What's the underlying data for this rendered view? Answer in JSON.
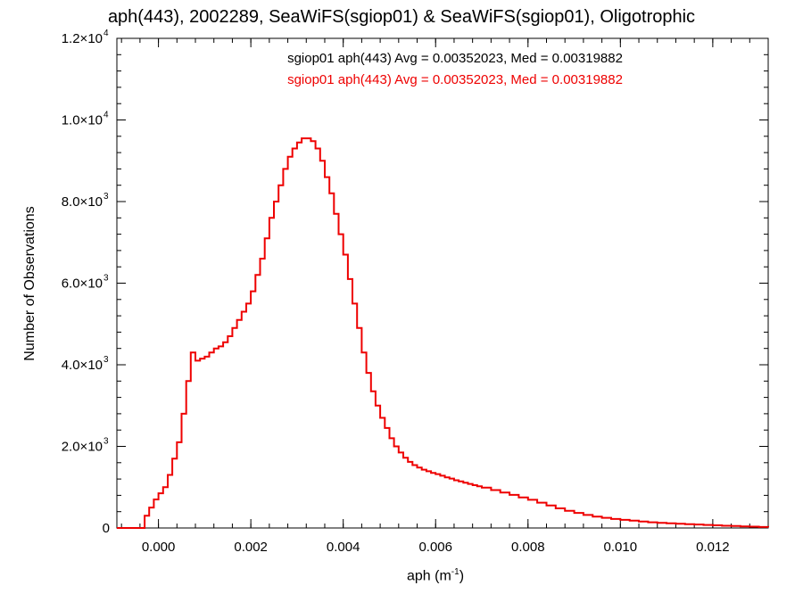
{
  "chart_data": {
    "type": "histogram",
    "title": "aph(443), 2002289, SeaWiFS(sgiop01) & SeaWiFS(sgiop01), Oligotrophic",
    "xlabel": "aph (m",
    "xlabel_sup": "-1",
    "xlabel_close": ")",
    "ylabel": "Number of Observations",
    "xlim": [
      -0.0009,
      0.0132
    ],
    "ylim": [
      0,
      12000
    ],
    "x_ticks": [
      0.0,
      0.002,
      0.004,
      0.006,
      0.008,
      0.01,
      0.012
    ],
    "x_tick_labels": [
      "0.000",
      "0.002",
      "0.004",
      "0.006",
      "0.008",
      "0.010",
      "0.012"
    ],
    "y_ticks": [
      0,
      2000,
      4000,
      6000,
      8000,
      10000,
      12000
    ],
    "y_tick_labels": [
      {
        "mant": "0",
        "exp": ""
      },
      {
        "mant": "2.0×10",
        "exp": "3"
      },
      {
        "mant": "4.0×10",
        "exp": "3"
      },
      {
        "mant": "6.0×10",
        "exp": "3"
      },
      {
        "mant": "8.0×10",
        "exp": "3"
      },
      {
        "mant": "1.0×10",
        "exp": "4"
      },
      {
        "mant": "1.2×10",
        "exp": "4"
      }
    ],
    "annotations": [
      {
        "text": "sgiop01 aph(443) Avg = 0.00352023, Med = 0.00319882",
        "color": "#000000"
      },
      {
        "text": "sgiop01 aph(443) Avg = 0.00352023, Med = 0.00319882",
        "color": "#ee0000"
      }
    ],
    "series": [
      {
        "color": "#ee0000",
        "points": [
          [
            -0.0009,
            0
          ],
          [
            -0.0004,
            0
          ],
          [
            -0.0003,
            300
          ],
          [
            -0.0002,
            500
          ],
          [
            -0.0001,
            700
          ],
          [
            0.0,
            850
          ],
          [
            0.0001,
            1000
          ],
          [
            0.0002,
            1300
          ],
          [
            0.0003,
            1700
          ],
          [
            0.0004,
            2100
          ],
          [
            0.0005,
            2800
          ],
          [
            0.0006,
            3600
          ],
          [
            0.0007,
            4300
          ],
          [
            0.0008,
            4100
          ],
          [
            0.0009,
            4150
          ],
          [
            0.001,
            4200
          ],
          [
            0.0011,
            4300
          ],
          [
            0.0012,
            4400
          ],
          [
            0.0013,
            4450
          ],
          [
            0.0014,
            4550
          ],
          [
            0.0015,
            4700
          ],
          [
            0.0016,
            4900
          ],
          [
            0.0017,
            5100
          ],
          [
            0.0018,
            5300
          ],
          [
            0.0019,
            5500
          ],
          [
            0.002,
            5800
          ],
          [
            0.0021,
            6200
          ],
          [
            0.0022,
            6600
          ],
          [
            0.0023,
            7100
          ],
          [
            0.0024,
            7600
          ],
          [
            0.0025,
            8000
          ],
          [
            0.0026,
            8400
          ],
          [
            0.0027,
            8800
          ],
          [
            0.0028,
            9100
          ],
          [
            0.0029,
            9300
          ],
          [
            0.003,
            9450
          ],
          [
            0.0031,
            9550
          ],
          [
            0.0032,
            9550
          ],
          [
            0.0033,
            9480
          ],
          [
            0.0034,
            9300
          ],
          [
            0.0035,
            9000
          ],
          [
            0.0036,
            8600
          ],
          [
            0.0037,
            8200
          ],
          [
            0.0038,
            7700
          ],
          [
            0.0039,
            7200
          ],
          [
            0.004,
            6700
          ],
          [
            0.0041,
            6100
          ],
          [
            0.0042,
            5500
          ],
          [
            0.0043,
            4900
          ],
          [
            0.0044,
            4300
          ],
          [
            0.0045,
            3800
          ],
          [
            0.0046,
            3350
          ],
          [
            0.0047,
            3000
          ],
          [
            0.0048,
            2700
          ],
          [
            0.0049,
            2450
          ],
          [
            0.005,
            2200
          ],
          [
            0.0051,
            2000
          ],
          [
            0.0052,
            1850
          ],
          [
            0.0053,
            1720
          ],
          [
            0.0054,
            1620
          ],
          [
            0.0055,
            1540
          ],
          [
            0.0056,
            1480
          ],
          [
            0.0057,
            1430
          ],
          [
            0.0058,
            1390
          ],
          [
            0.0059,
            1350
          ],
          [
            0.006,
            1320
          ],
          [
            0.0061,
            1280
          ],
          [
            0.0062,
            1240
          ],
          [
            0.0063,
            1210
          ],
          [
            0.0064,
            1170
          ],
          [
            0.0065,
            1140
          ],
          [
            0.0066,
            1110
          ],
          [
            0.0067,
            1080
          ],
          [
            0.0068,
            1050
          ],
          [
            0.0069,
            1020
          ],
          [
            0.007,
            990
          ],
          [
            0.0072,
            930
          ],
          [
            0.0074,
            870
          ],
          [
            0.0076,
            810
          ],
          [
            0.0078,
            750
          ],
          [
            0.008,
            690
          ],
          [
            0.0082,
            620
          ],
          [
            0.0084,
            550
          ],
          [
            0.0086,
            480
          ],
          [
            0.0088,
            420
          ],
          [
            0.009,
            370
          ],
          [
            0.0092,
            320
          ],
          [
            0.0094,
            280
          ],
          [
            0.0096,
            250
          ],
          [
            0.0098,
            220
          ],
          [
            0.01,
            200
          ],
          [
            0.0102,
            180
          ],
          [
            0.0104,
            160
          ],
          [
            0.0106,
            140
          ],
          [
            0.0108,
            125
          ],
          [
            0.011,
            115
          ],
          [
            0.0112,
            105
          ],
          [
            0.0114,
            95
          ],
          [
            0.0116,
            85
          ],
          [
            0.0118,
            75
          ],
          [
            0.012,
            65
          ],
          [
            0.0122,
            55
          ],
          [
            0.0124,
            48
          ],
          [
            0.0126,
            40
          ],
          [
            0.0128,
            32
          ],
          [
            0.013,
            25
          ],
          [
            0.0132,
            20
          ]
        ]
      }
    ]
  }
}
